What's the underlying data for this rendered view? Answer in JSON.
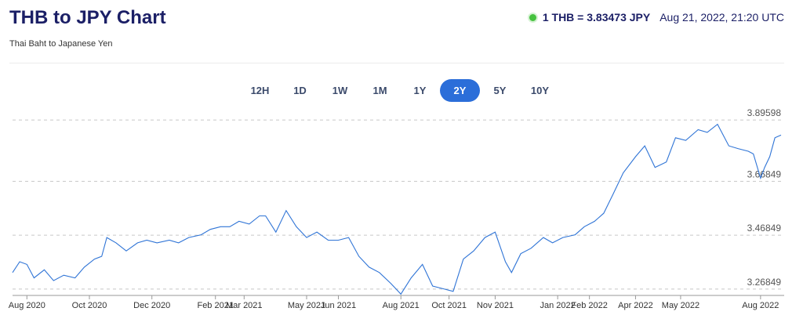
{
  "header": {
    "title": "THB to JPY Chart",
    "subtitle": "Thai Baht to Japanese Yen",
    "rate_text": "1 THB = 3.83473 JPY",
    "timestamp": "Aug 21, 2022, 21:20 UTC",
    "status_color": "#46c23f"
  },
  "ranges": [
    "12H",
    "1D",
    "1W",
    "1M",
    "1Y",
    "2Y",
    "5Y",
    "10Y"
  ],
  "active_range": "2Y",
  "colors": {
    "line": "#2f74d6",
    "active_button": "#2b6ed9",
    "title": "#1b1f66"
  },
  "chart_data": {
    "type": "line",
    "title": "",
    "xlabel": "",
    "ylabel": "",
    "ylim": [
      3.245,
      3.905
    ],
    "yticks": [
      3.26849,
      3.46849,
      3.66849,
      3.89598
    ],
    "ytick_labels": [
      "3.26849",
      "3.46849",
      "3.66849",
      "3.89598"
    ],
    "grid": "horizontal dashed",
    "x_start": "2020-08-01",
    "x_end": "2022-08-21",
    "xticks": [
      {
        "date": "2020-08-15",
        "label": "Aug 2020"
      },
      {
        "date": "2020-10-15",
        "label": "Oct 2020"
      },
      {
        "date": "2020-12-15",
        "label": "Dec 2020"
      },
      {
        "date": "2021-02-15",
        "label": "Feb 2021"
      },
      {
        "date": "2021-03-15",
        "label": "Mar 2021"
      },
      {
        "date": "2021-05-15",
        "label": "May 2021"
      },
      {
        "date": "2021-06-15",
        "label": "Jun 2021"
      },
      {
        "date": "2021-08-15",
        "label": "Aug 2021"
      },
      {
        "date": "2021-10-01",
        "label": "Oct 2021"
      },
      {
        "date": "2021-11-15",
        "label": "Nov 2021"
      },
      {
        "date": "2022-01-15",
        "label": "Jan 2022"
      },
      {
        "date": "2022-02-15",
        "label": "Feb 2022"
      },
      {
        "date": "2022-04-01",
        "label": "Apr 2022"
      },
      {
        "date": "2022-05-15",
        "label": "May 2022"
      },
      {
        "date": "2022-08-01",
        "label": "Aug 2022"
      }
    ],
    "series": [
      {
        "x": [
          "2020-08-01",
          "2020-08-08",
          "2020-08-15",
          "2020-08-22",
          "2020-09-01",
          "2020-09-10",
          "2020-09-20",
          "2020-10-01",
          "2020-10-10",
          "2020-10-20",
          "2020-10-27",
          "2020-11-01",
          "2020-11-10",
          "2020-11-20",
          "2020-12-01",
          "2020-12-10",
          "2020-12-20",
          "2021-01-01",
          "2021-01-10",
          "2021-01-20",
          "2021-02-01",
          "2021-02-10",
          "2021-02-20",
          "2021-03-01",
          "2021-03-10",
          "2021-03-20",
          "2021-03-30",
          "2021-04-05",
          "2021-04-15",
          "2021-04-25",
          "2021-05-05",
          "2021-05-15",
          "2021-05-25",
          "2021-06-05",
          "2021-06-15",
          "2021-06-25",
          "2021-07-05",
          "2021-07-15",
          "2021-07-25",
          "2021-08-05",
          "2021-08-15",
          "2021-08-25",
          "2021-09-05",
          "2021-09-15",
          "2021-09-25",
          "2021-10-05",
          "2021-10-15",
          "2021-10-25",
          "2021-11-05",
          "2021-11-15",
          "2021-11-25",
          "2021-12-01",
          "2021-12-10",
          "2021-12-20",
          "2022-01-01",
          "2022-01-10",
          "2022-01-20",
          "2022-02-01",
          "2022-02-10",
          "2022-02-20",
          "2022-03-01",
          "2022-03-10",
          "2022-03-20",
          "2022-04-01",
          "2022-04-10",
          "2022-04-20",
          "2022-05-01",
          "2022-05-10",
          "2022-05-20",
          "2022-06-01",
          "2022-06-10",
          "2022-06-20",
          "2022-07-01",
          "2022-07-10",
          "2022-07-20",
          "2022-07-25",
          "2022-08-01",
          "2022-08-05",
          "2022-08-10",
          "2022-08-15",
          "2022-08-21"
        ],
        "values": [
          3.33,
          3.37,
          3.36,
          3.31,
          3.34,
          3.3,
          3.32,
          3.31,
          3.35,
          3.38,
          3.39,
          3.46,
          3.44,
          3.41,
          3.44,
          3.45,
          3.44,
          3.45,
          3.44,
          3.46,
          3.47,
          3.49,
          3.5,
          3.5,
          3.52,
          3.51,
          3.54,
          3.54,
          3.48,
          3.56,
          3.5,
          3.46,
          3.48,
          3.45,
          3.45,
          3.46,
          3.39,
          3.35,
          3.33,
          3.29,
          3.25,
          3.31,
          3.36,
          3.28,
          3.27,
          3.26,
          3.38,
          3.41,
          3.46,
          3.48,
          3.37,
          3.33,
          3.4,
          3.42,
          3.46,
          3.44,
          3.46,
          3.47,
          3.5,
          3.52,
          3.55,
          3.62,
          3.7,
          3.76,
          3.8,
          3.72,
          3.74,
          3.83,
          3.82,
          3.86,
          3.85,
          3.88,
          3.8,
          3.79,
          3.78,
          3.77,
          3.68,
          3.72,
          3.76,
          3.83,
          3.84
        ]
      }
    ]
  }
}
